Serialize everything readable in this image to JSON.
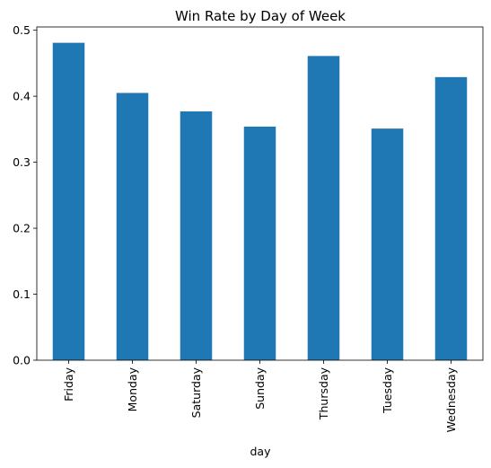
{
  "chart_data": {
    "type": "bar",
    "title": "Win Rate by Day of Week",
    "xlabel": "day",
    "ylabel": "",
    "categories": [
      "Friday",
      "Monday",
      "Saturday",
      "Sunday",
      "Thursday",
      "Tuesday",
      "Wednesday"
    ],
    "values": [
      0.481,
      0.405,
      0.377,
      0.354,
      0.461,
      0.351,
      0.429
    ],
    "yticks": [
      "0.0",
      "0.1",
      "0.2",
      "0.3",
      "0.4",
      "0.5"
    ],
    "ytick_values": [
      0.0,
      0.1,
      0.2,
      0.3,
      0.4,
      0.5
    ],
    "ylim": [
      0,
      0.505
    ],
    "bar_color": "#1f77b4",
    "grid": false,
    "legend": "none"
  }
}
